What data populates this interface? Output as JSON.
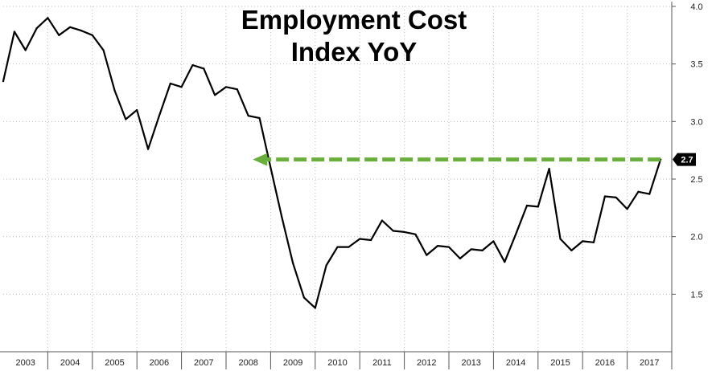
{
  "chart_data": {
    "type": "line",
    "title_lines": [
      "Employment Cost",
      "Index YoY"
    ],
    "xlabel": "",
    "ylabel": "",
    "categories": [
      "2003",
      "2004",
      "2005",
      "2006",
      "2007",
      "2008",
      "2009",
      "2010",
      "2011",
      "2012",
      "2013",
      "2014",
      "2015",
      "2016",
      "2017"
    ],
    "x_range": [
      2003.0,
      2018.0
    ],
    "ylim": [
      1.0,
      4.0
    ],
    "y_ticks": [
      "1.5",
      "2.0",
      "2.5",
      "3.0",
      "3.5",
      "4.0"
    ],
    "y_axis_position": "right",
    "grid": true,
    "legend": "none",
    "series": [
      {
        "color": "#000000",
        "x": [
          2003.0,
          2003.25,
          2003.5,
          2003.75,
          2004.0,
          2004.25,
          2004.5,
          2004.75,
          2005.0,
          2005.25,
          2005.5,
          2005.75,
          2006.0,
          2006.25,
          2006.5,
          2006.75,
          2007.0,
          2007.25,
          2007.5,
          2007.75,
          2008.0,
          2008.25,
          2008.5,
          2008.75,
          2009.0,
          2009.25,
          2009.5,
          2009.75,
          2010.0,
          2010.25,
          2010.5,
          2010.75,
          2011.0,
          2011.25,
          2011.5,
          2011.75,
          2012.0,
          2012.25,
          2012.5,
          2012.75,
          2013.0,
          2013.25,
          2013.5,
          2013.75,
          2014.0,
          2014.25,
          2014.5,
          2014.75,
          2015.0,
          2015.25,
          2015.5,
          2015.75,
          2016.0,
          2016.25,
          2016.5,
          2016.75,
          2017.0,
          2017.25,
          2017.5,
          2017.75
        ],
        "values": [
          3.35,
          3.78,
          3.62,
          3.81,
          3.9,
          3.75,
          3.82,
          3.79,
          3.75,
          3.62,
          3.27,
          3.02,
          3.1,
          2.76,
          3.05,
          3.33,
          3.3,
          3.49,
          3.46,
          3.23,
          3.3,
          3.28,
          3.05,
          3.03,
          2.6,
          2.17,
          1.77,
          1.47,
          1.38,
          1.75,
          1.91,
          1.91,
          1.98,
          1.97,
          2.14,
          2.05,
          2.04,
          2.02,
          1.84,
          1.92,
          1.91,
          1.81,
          1.89,
          1.88,
          1.96,
          1.78,
          2.02,
          2.27,
          2.26,
          2.59,
          1.98,
          1.88,
          1.96,
          1.95,
          2.35,
          2.34,
          2.24,
          2.39,
          2.37,
          2.67
        ]
      }
    ],
    "annotations": [
      {
        "type": "dashed-arrow",
        "color": "#6aaf3d",
        "y": 2.67,
        "x_from": 2017.75,
        "x_to": 2008.6
      }
    ],
    "last_value_label": {
      "text": "2.7",
      "value": 2.67
    }
  }
}
